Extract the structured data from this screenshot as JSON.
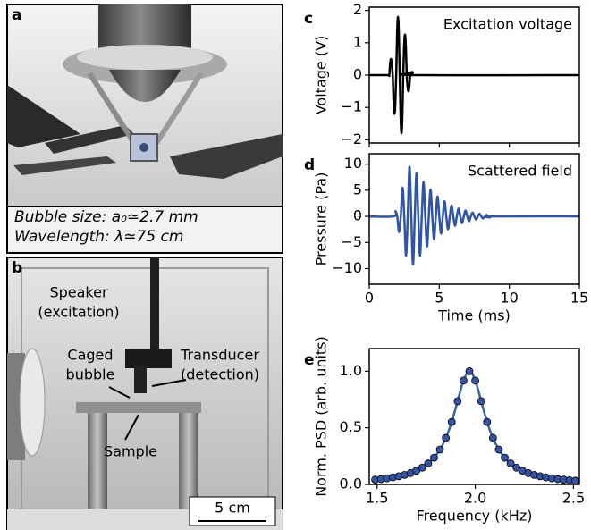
{
  "panels": {
    "a": {
      "label": "a",
      "caption": [
        "Bubble size: a₀≃2.7 mm",
        "Wavelength: λ≃75 cm"
      ]
    },
    "b": {
      "label": "b",
      "speaker": [
        "Speaker",
        "(excitation)"
      ],
      "bubble": [
        "Caged",
        "bubble"
      ],
      "transducer": [
        "Transducer",
        "(detection)"
      ],
      "sample": "Sample",
      "scale_bar": "5 cm"
    }
  },
  "chart_data": [
    {
      "type": "line",
      "panel": "c",
      "annotation": "Excitation voltage",
      "ylabel": "Voltage (V)",
      "color": "#000000",
      "annotation_color": "#000000",
      "x": [
        0,
        1.3,
        1.425,
        1.4875,
        1.55,
        1.6125,
        1.675,
        1.7375,
        1.8,
        1.8625,
        1.925,
        1.9875,
        2.05,
        2.1125,
        2.175,
        2.2375,
        2.3,
        2.3625,
        2.425,
        2.4875,
        2.55,
        2.6125,
        2.675,
        2.7375,
        2.8,
        2.8625,
        2.925,
        2.9875,
        3.05,
        3.1125,
        3.175,
        15
      ],
      "values": [
        0,
        0,
        0,
        0.35,
        0.5,
        0.35,
        0,
        -0.85,
        -1.2,
        -0.85,
        0,
        1.27,
        1.8,
        1.27,
        0,
        -1.27,
        -1.8,
        -1.27,
        0,
        0.88,
        1.25,
        0.88,
        0,
        -0.35,
        -0.5,
        -0.35,
        0,
        0.07,
        0.1,
        0.07,
        0,
        0
      ],
      "xlim": [
        0,
        15
      ],
      "xticks": [
        0,
        5,
        10,
        15
      ],
      "xticklabels": false,
      "ylim": [
        -2.1,
        2.1
      ],
      "yticks": [
        {
          "value": -2,
          "label": "−2"
        },
        {
          "value": -1,
          "label": "−1"
        },
        0,
        1,
        2
      ]
    },
    {
      "type": "line",
      "panel": "d",
      "annotation": "Scattered field",
      "ylabel": "Pressure (Pa)",
      "xlabel": "Time (ms)",
      "color": "#2f55a4",
      "annotation_color": "#2f55a4",
      "x": [
        0,
        1.75,
        1.875,
        2.0,
        2.125,
        2.25,
        2.375,
        2.5,
        2.625,
        2.75,
        2.875,
        3.0,
        3.125,
        3.25,
        3.375,
        3.5,
        3.625,
        3.75,
        3.875,
        4.0,
        4.125,
        4.25,
        4.375,
        4.5,
        4.625,
        4.75,
        4.875,
        5.0,
        5.125,
        5.25,
        5.375,
        5.5,
        5.625,
        5.75,
        5.875,
        6.0,
        6.125,
        6.25,
        6.375,
        6.5,
        6.625,
        6.75,
        6.875,
        7.0,
        7.125,
        7.25,
        7.375,
        7.5,
        7.625,
        7.75,
        7.875,
        8.0,
        8.125,
        8.25,
        8.375,
        8.5,
        8.625,
        8.75,
        15
      ],
      "values": [
        0,
        0,
        1,
        0,
        -3,
        0,
        5.5,
        0,
        -7.5,
        0,
        9.5,
        0,
        -9.2,
        0,
        8.3,
        0,
        -7.5,
        0,
        6.6,
        0,
        -5.8,
        0,
        5.1,
        0,
        -4.4,
        0,
        3.8,
        0,
        -3.3,
        0,
        2.9,
        0,
        -2.5,
        0,
        2.1,
        0,
        -1.8,
        0,
        1.5,
        0,
        -1.3,
        0,
        1.1,
        0,
        -0.9,
        0,
        0.75,
        0,
        -0.6,
        0,
        0.5,
        0,
        -0.4,
        0,
        0.3,
        0,
        -0.2,
        0,
        0
      ],
      "xlim": [
        0,
        15
      ],
      "xticks": [
        0,
        5,
        10,
        15
      ],
      "xticklabels": true,
      "ylim": [
        -13,
        12
      ],
      "yticks": [
        {
          "value": -10,
          "label": "−10"
        },
        {
          "value": -5,
          "label": "−5"
        },
        0,
        5,
        10
      ]
    },
    {
      "type": "line",
      "panel": "e",
      "ylabel": "Norm. PSD (arb. units)",
      "xlabel": "Frequency (kHz)",
      "color": "#3a63a8",
      "marker_color": "#3553a0",
      "markers": true,
      "x": [
        1.49,
        1.52,
        1.55,
        1.58,
        1.61,
        1.64,
        1.67,
        1.7,
        1.73,
        1.76,
        1.79,
        1.82,
        1.85,
        1.88,
        1.91,
        1.94,
        1.97,
        2.0,
        2.03,
        2.06,
        2.09,
        2.12,
        2.15,
        2.18,
        2.21,
        2.24,
        2.27,
        2.3,
        2.33,
        2.36,
        2.39,
        2.42,
        2.45,
        2.48,
        2.51
      ],
      "values": [
        0.042,
        0.047,
        0.054,
        0.062,
        0.072,
        0.084,
        0.1,
        0.121,
        0.148,
        0.185,
        0.236,
        0.308,
        0.41,
        0.552,
        0.735,
        0.917,
        1,
        0.917,
        0.735,
        0.552,
        0.41,
        0.308,
        0.236,
        0.185,
        0.148,
        0.121,
        0.1,
        0.084,
        0.072,
        0.062,
        0.054,
        0.047,
        0.042,
        0.037,
        0.033
      ],
      "xlim": [
        1.46,
        2.53
      ],
      "xticks": [
        {
          "value": 1.5,
          "label": "1.5"
        },
        {
          "value": 2,
          "label": "2.0"
        },
        {
          "value": 2.5,
          "label": "2.5"
        }
      ],
      "xticklabels": true,
      "ylim": [
        0,
        1.2
      ],
      "yticks": [
        {
          "value": 0,
          "label": "0.0"
        },
        {
          "value": 0.5,
          "label": "0.5"
        },
        {
          "value": 1,
          "label": "1.0"
        }
      ]
    }
  ]
}
